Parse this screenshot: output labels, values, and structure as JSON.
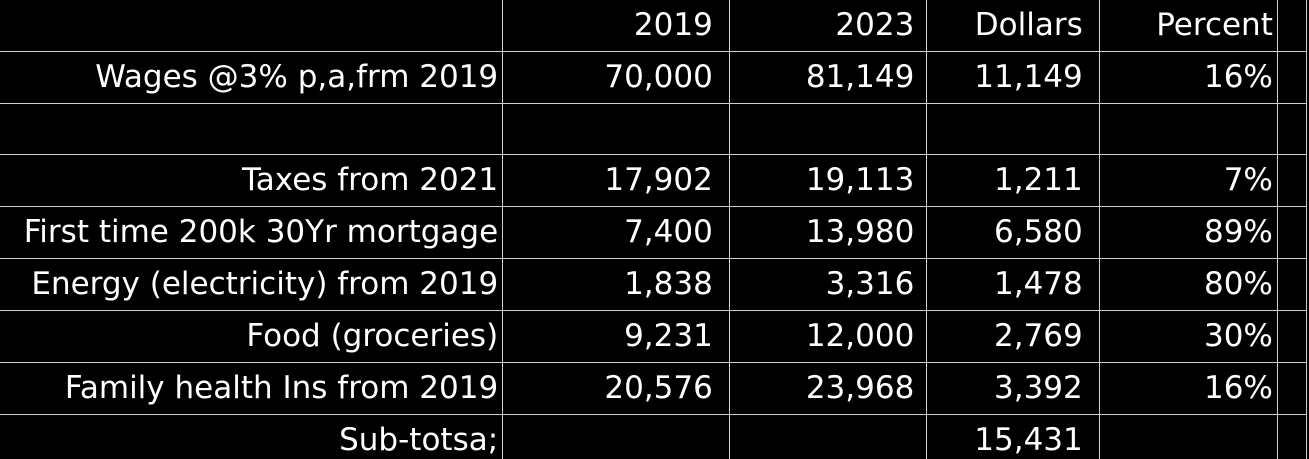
{
  "spreadsheet": {
    "columns": {
      "label": "",
      "year_start": "2019",
      "year_end": "2023",
      "dollars": "Dollars",
      "percent": "Percent"
    },
    "rows": [
      {
        "label": "Wages @3% p,a,frm 2019",
        "v2019": "70,000",
        "v2023": "81,149",
        "dollars": "11,149",
        "percent": "16%"
      },
      {
        "label": "",
        "v2019": "",
        "v2023": "",
        "dollars": "",
        "percent": ""
      },
      {
        "label": "Taxes from 2021",
        "v2019": "17,902",
        "v2023": "19,113",
        "dollars": "1,211",
        "percent": "7%"
      },
      {
        "label": "First time 200k 30Yr mortgage",
        "v2019": "7,400",
        "v2023": "13,980",
        "dollars": "6,580",
        "percent": "89%"
      },
      {
        "label": "Energy (electricity) from 2019",
        "v2019": "1,838",
        "v2023": "3,316",
        "dollars": "1,478",
        "percent": "80%"
      },
      {
        "label": "Food (groceries)",
        "v2019": "9,231",
        "v2023": "12,000",
        "dollars": "2,769",
        "percent": "30%"
      },
      {
        "label": "Family health Ins from 2019",
        "v2019": "20,576",
        "v2023": "23,968",
        "dollars": "3,392",
        "percent": "16%"
      },
      {
        "label": "Sub-totsa;",
        "v2019": "",
        "v2023": "",
        "dollars": "15,431",
        "percent": ""
      }
    ]
  },
  "colors": {
    "background": "#000000",
    "text": "#ffffff",
    "gridline": "#d0d0d0"
  }
}
